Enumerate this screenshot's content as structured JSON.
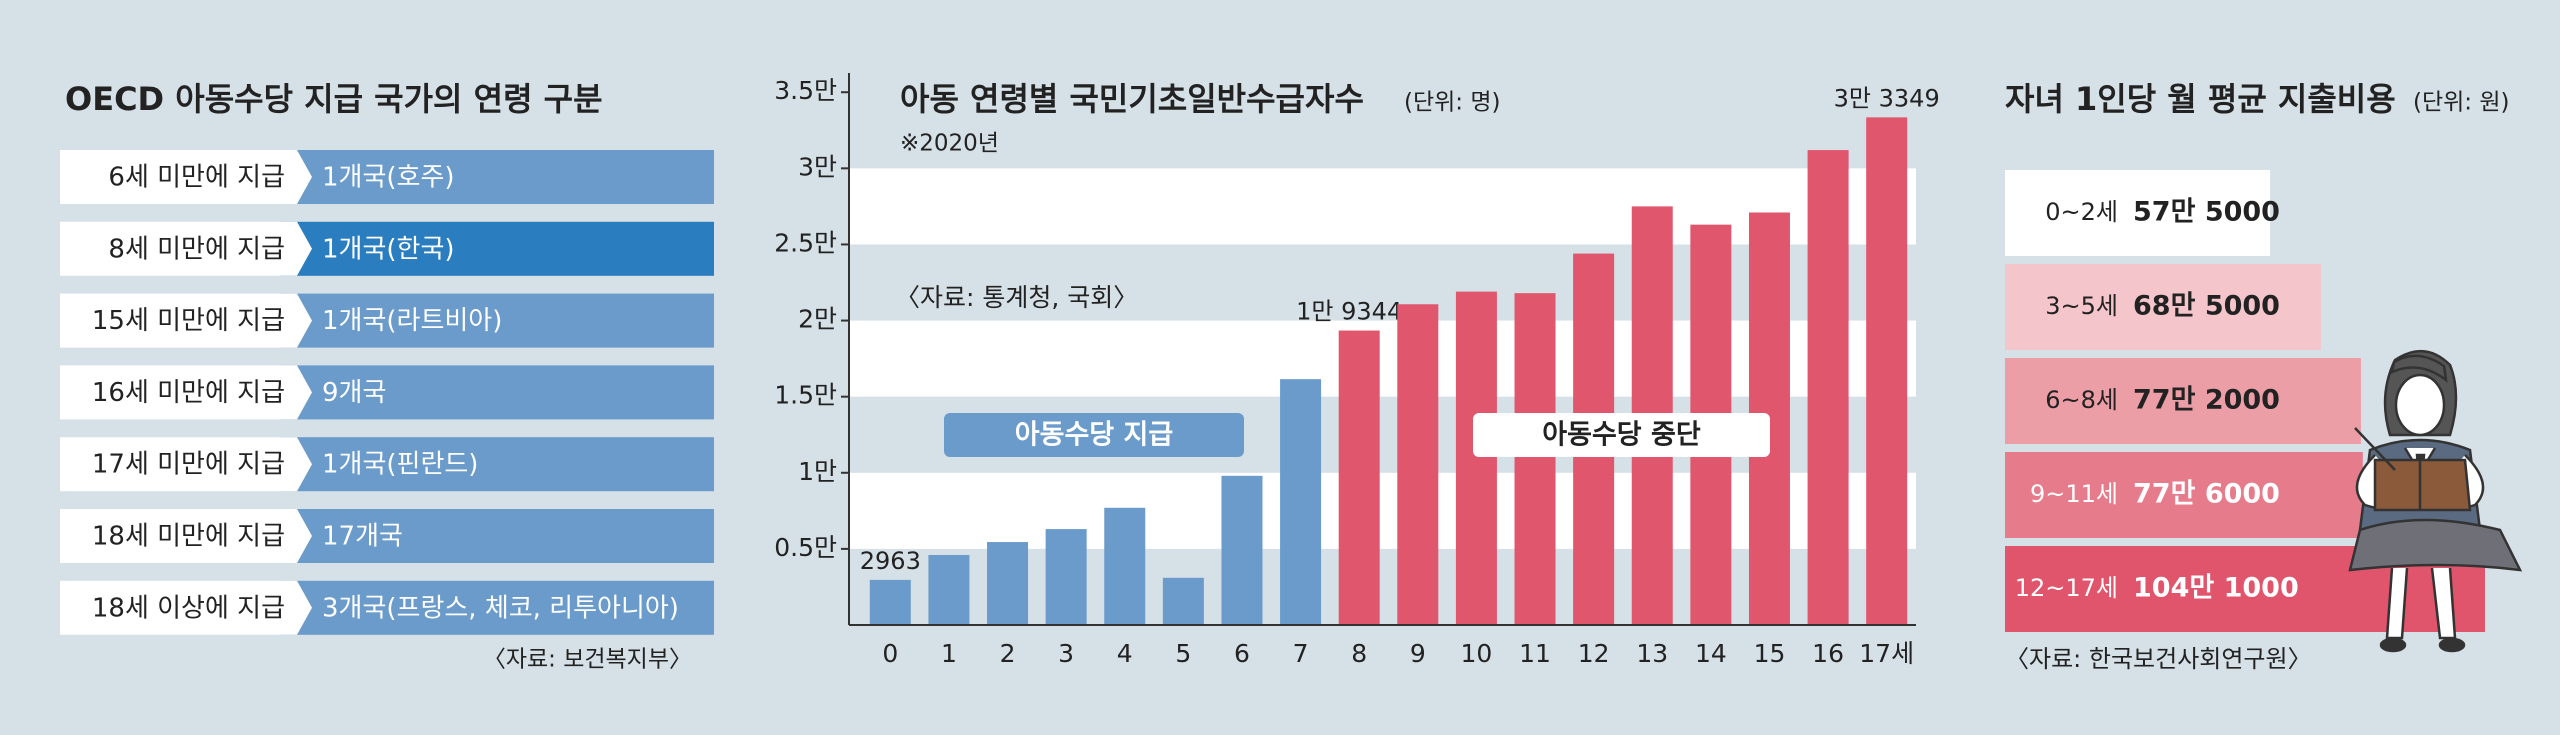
{
  "table": {
    "title": "OECD 아동수당 지급 국가의 연령 구분",
    "rows": [
      [
        "6세 미만에 지급",
        "1개국(호주)"
      ],
      [
        "8세 미만에 지급",
        "1개국(한국)"
      ],
      [
        "15세 미만에 지급",
        "1개국(라트비아)"
      ],
      [
        "16세 미만에 지급",
        "9개국"
      ],
      [
        "17세 미만에 지급",
        "1개국(핀란드)"
      ],
      [
        "18세 미만에 지급",
        "17개국"
      ],
      [
        "18세 이상에 지급",
        "3개국(프랑스, 체코, 리투아니아)"
      ]
    ],
    "highlight_row": 1,
    "color": "#6a9bcb",
    "highlight_color": "#2a7dbf",
    "source": "〈자료: 보건복지부〉"
  },
  "chart_data": [
    {
      "type": "bar",
      "title": "아동 연령별 국민기초일반수급자수",
      "subtitle": "(단위: 명)",
      "note": "※2020년",
      "source": "〈자료: 통계청, 국회〉",
      "categories": [
        "0",
        "1",
        "2",
        "3",
        "4",
        "5",
        "6",
        "7",
        "8",
        "9",
        "10",
        "11",
        "12",
        "13",
        "14",
        "15",
        "16",
        "17세"
      ],
      "series": [
        {
          "name": "아동수당 지급",
          "color": "#6a9bcb",
          "values": [
            2963,
            4600,
            5450,
            6300,
            7700,
            3100,
            9800,
            16150,
            null,
            null,
            null,
            null,
            null,
            null,
            null,
            null,
            null,
            null
          ],
          "value_labels": [
            "2963",
            null,
            null,
            null,
            null,
            null,
            null,
            null,
            null,
            null,
            null,
            null,
            null,
            null,
            null,
            null,
            null,
            null
          ]
        },
        {
          "name": "아동수당 중단",
          "color": "#e0566c",
          "values": [
            null,
            null,
            null,
            null,
            null,
            null,
            null,
            null,
            19344,
            21070,
            21900,
            21800,
            24400,
            27500,
            26300,
            27100,
            31200,
            33349
          ],
          "value_labels": [
            null,
            null,
            null,
            null,
            null,
            null,
            null,
            null,
            "1만 9344",
            null,
            null,
            null,
            null,
            null,
            null,
            null,
            null,
            "3만 3349"
          ]
        }
      ],
      "ylim": [
        0,
        36000
      ],
      "yticks": [
        {
          "value": 5000,
          "label": "0.5만"
        },
        {
          "value": 10000,
          "label": "1만"
        },
        {
          "value": 15000,
          "label": "1.5만"
        },
        {
          "value": 20000,
          "label": "2만"
        },
        {
          "value": 25000,
          "label": "2.5만"
        },
        {
          "value": 30000,
          "label": "3만"
        },
        {
          "value": 35000,
          "label": "3.5만"
        }
      ],
      "grid": "bands"
    },
    {
      "type": "barh",
      "title": "자녀 1인당 월 평균 지출비용",
      "subtitle": "(단위: 원)",
      "source": "〈자료: 한국보건사회연구원〉",
      "categories": [
        "0~2세",
        "3~5세",
        "6~8세",
        "9~11세",
        "12~17세"
      ],
      "values": [
        575000,
        685000,
        772000,
        776000,
        1041000
      ],
      "value_labels": [
        "57만 5000",
        "68만 5000",
        "77만 2000",
        "77만 6000",
        "104만 1000"
      ],
      "colors": [
        "#ffffff",
        "#f4c5ca",
        "#ec9ea7",
        "#e67c8b",
        "#e0556b"
      ]
    }
  ]
}
